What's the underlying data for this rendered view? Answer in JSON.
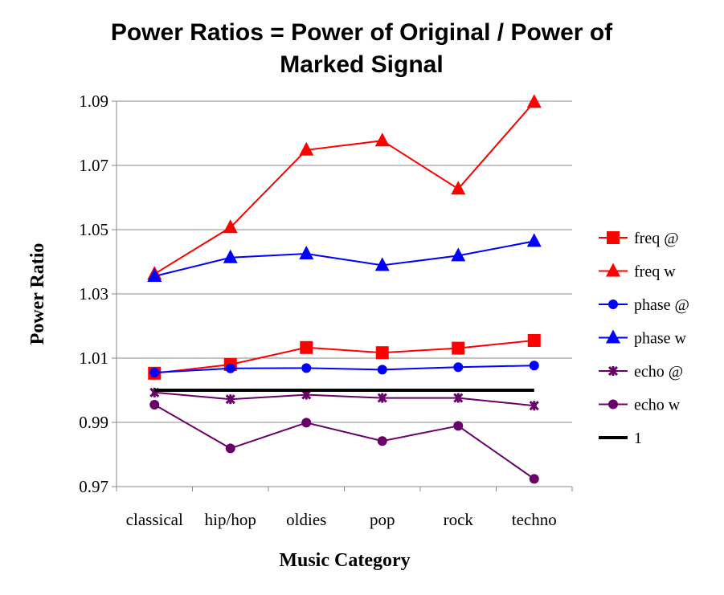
{
  "chart_data": {
    "type": "line",
    "title_lines": [
      "Power Ratios = Power of Original / Power of",
      "Marked Signal"
    ],
    "xlabel": "Music Category",
    "ylabel": "Power Ratio",
    "categories": [
      "classical",
      "hip/hop",
      "oldies",
      "pop",
      "rock",
      "techno"
    ],
    "ylim": [
      0.97,
      1.09
    ],
    "yticks": [
      "0.97",
      "0.99",
      "1.01",
      "1.03",
      "1.05",
      "1.07",
      "1.09"
    ],
    "grid": true,
    "legend_position": "right",
    "series": [
      {
        "name": "freq @",
        "color": "#ff0000",
        "marker": "square",
        "values": [
          1.0053,
          1.008,
          1.0133,
          1.0117,
          1.0131,
          1.0155
        ]
      },
      {
        "name": "freq w",
        "color": "#ff0000",
        "marker": "triangle",
        "values": [
          1.0362,
          1.0507,
          1.0748,
          1.0777,
          1.0627,
          1.0897
        ]
      },
      {
        "name": "phase @",
        "color": "#0000ff",
        "marker": "circle",
        "values": [
          1.0055,
          1.0068,
          1.0069,
          1.0064,
          1.0072,
          1.0077
        ]
      },
      {
        "name": "phase w",
        "color": "#0000ff",
        "marker": "triangle",
        "values": [
          1.0355,
          1.0413,
          1.0425,
          1.0389,
          1.0419,
          1.0464
        ]
      },
      {
        "name": "echo @",
        "color": "#6a006a",
        "marker": "star",
        "values": [
          0.9993,
          0.9972,
          0.9986,
          0.9976,
          0.9976,
          0.9952
        ]
      },
      {
        "name": "echo w",
        "color": "#6a006a",
        "marker": "circle",
        "values": [
          0.9955,
          0.9819,
          0.9899,
          0.9842,
          0.9889,
          0.9724
        ]
      },
      {
        "name": "1",
        "color": "#000000",
        "marker": "none",
        "values": [
          1.0,
          1.0,
          1.0,
          1.0,
          1.0,
          1.0
        ]
      }
    ]
  }
}
